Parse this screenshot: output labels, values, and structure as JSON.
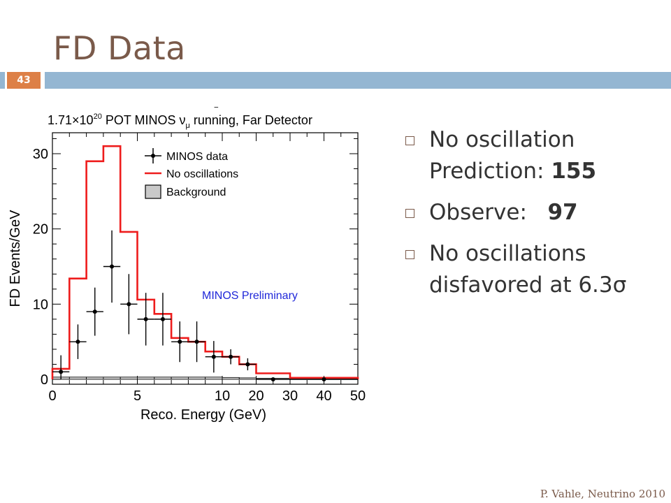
{
  "slide": {
    "title": "FD Data",
    "number": "43",
    "footer": "P. Vahle, Neutrino 2010"
  },
  "bullets": [
    {
      "text": "No oscillation Prediction: ",
      "value": "155"
    },
    {
      "text": "Observe:   ",
      "value": "97"
    },
    {
      "text": "No oscillations disfavored at 6.3σ",
      "value": ""
    }
  ],
  "colors": {
    "title": "#7a5a4a",
    "rule": "#94b6d2",
    "number_box": "#dd8047",
    "prediction": "#ee1c1c",
    "data": "#000000",
    "preliminary": "#1f27d9"
  },
  "chart_data": {
    "type": "histogram",
    "title_parts": {
      "prefix": "1.71×",
      "mantissa": "10",
      "exponent": "20",
      "suffix": " POT MINOS ",
      "nubar": "ν",
      "mu": "μ",
      "rest": " running, Far Detector"
    },
    "xlabel": "Reco. Energy (GeV)",
    "ylabel": "FD Events/GeV",
    "annotation": "MINOS Preliminary",
    "x_ticks": [
      "0",
      "5",
      "10",
      "20",
      "30",
      "40",
      "50"
    ],
    "y_ticks": [
      "0",
      "10",
      "20",
      "30"
    ],
    "ylim": [
      0,
      33
    ],
    "legend_position": "top-right",
    "legend": [
      "MINOS data",
      "No oscillations",
      "Background"
    ],
    "prediction": {
      "name": "No oscillations",
      "bins": [
        [
          0,
          1,
          1.4
        ],
        [
          1,
          2,
          13.4
        ],
        [
          2,
          3,
          29.0
        ],
        [
          3,
          4,
          31.0
        ],
        [
          4,
          5,
          19.6
        ],
        [
          5,
          6,
          10.6
        ],
        [
          6,
          7,
          8.7
        ],
        [
          7,
          8,
          5.5
        ],
        [
          8,
          9,
          5.0
        ],
        [
          9,
          10,
          3.7
        ],
        [
          10,
          15,
          3.0
        ],
        [
          15,
          20,
          2.0
        ],
        [
          20,
          30,
          0.8
        ],
        [
          30,
          50,
          0.2
        ]
      ]
    },
    "background": {
      "name": "Background",
      "bins": [
        [
          0,
          1,
          0.3
        ],
        [
          1,
          2,
          0.3
        ],
        [
          2,
          3,
          0.3
        ],
        [
          3,
          4,
          0.3
        ],
        [
          4,
          5,
          0.3
        ],
        [
          5,
          6,
          0.3
        ],
        [
          6,
          7,
          0.3
        ],
        [
          7,
          8,
          0.3
        ],
        [
          8,
          9,
          0.3
        ],
        [
          9,
          10,
          0.3
        ],
        [
          10,
          15,
          0.25
        ],
        [
          15,
          20,
          0.2
        ],
        [
          20,
          30,
          0.15
        ],
        [
          30,
          50,
          0.1
        ]
      ]
    },
    "data": {
      "name": "MINOS data",
      "points": [
        {
          "x": 0.5,
          "y": 1.0,
          "xlo": 0,
          "xhi": 1,
          "err": 2.2
        },
        {
          "x": 1.5,
          "y": 5.0,
          "xlo": 1,
          "xhi": 2,
          "err": 2.3
        },
        {
          "x": 2.5,
          "y": 9.0,
          "xlo": 2,
          "xhi": 3,
          "err": 3.2
        },
        {
          "x": 3.5,
          "y": 15.0,
          "xlo": 3,
          "xhi": 4,
          "err": 4.8
        },
        {
          "x": 4.5,
          "y": 10.0,
          "xlo": 4,
          "xhi": 5,
          "err": 4.0
        },
        {
          "x": 5.5,
          "y": 8.0,
          "xlo": 5,
          "xhi": 6,
          "err": 3.5
        },
        {
          "x": 6.5,
          "y": 8.0,
          "xlo": 6,
          "xhi": 7,
          "err": 3.5
        },
        {
          "x": 7.5,
          "y": 5.0,
          "xlo": 7,
          "xhi": 8,
          "err": 2.7
        },
        {
          "x": 8.5,
          "y": 5.0,
          "xlo": 8,
          "xhi": 9,
          "err": 2.7
        },
        {
          "x": 9.5,
          "y": 3.0,
          "xlo": 9,
          "xhi": 10,
          "err": 2.1
        },
        {
          "x": 12.5,
          "y": 3.0,
          "xlo": 10,
          "xhi": 15,
          "err": 1.0
        },
        {
          "x": 17.5,
          "y": 2.0,
          "xlo": 15,
          "xhi": 20,
          "err": 0.8
        },
        {
          "x": 25,
          "y": 0.0,
          "xlo": 20,
          "xhi": 30,
          "err": 0
        },
        {
          "x": 40,
          "y": 0.0,
          "xlo": 30,
          "xhi": 50,
          "err": 0
        }
      ]
    }
  }
}
